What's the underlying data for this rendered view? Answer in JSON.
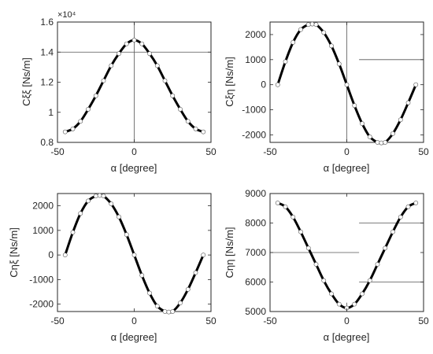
{
  "chart_data": [
    {
      "type": "line",
      "xlabel": "α [degree]",
      "ylabel": "Cξξ [Ns/m]",
      "xlim": [
        -50,
        50
      ],
      "ylim": [
        8000,
        16000
      ],
      "xticks": [
        -50,
        0,
        50
      ],
      "yticks": [
        8000,
        10000,
        12000,
        14000,
        16000
      ],
      "ytick_labels": [
        "0.8",
        "1",
        "1.2",
        "1.4",
        "1.6"
      ],
      "y_exponent_label": "×10⁴",
      "grid": false,
      "series": [
        {
          "x": [
            -45,
            -40,
            -35,
            -30,
            -25,
            -20,
            -15,
            -10,
            -5,
            0,
            5,
            10,
            15,
            20,
            25,
            30,
            35,
            40,
            45
          ],
          "y": [
            8700,
            8900,
            9400,
            10200,
            11100,
            12100,
            13100,
            13900,
            14550,
            14800,
            14550,
            13900,
            13100,
            12100,
            11100,
            10200,
            9400,
            8900,
            8700
          ]
        }
      ],
      "reference_lines": [
        {
          "orientation": "horizontal",
          "value": 14000,
          "from": -50,
          "to": 50
        },
        {
          "orientation": "vertical",
          "value": 0,
          "from": 8000,
          "to": 16000
        }
      ]
    },
    {
      "type": "line",
      "xlabel": "α [degree]",
      "ylabel": "Cξη [Ns/m]",
      "xlim": [
        -50,
        50
      ],
      "ylim": [
        -2300,
        2500
      ],
      "xticks": [
        -50,
        0,
        50
      ],
      "yticks": [
        -2000,
        -1000,
        0,
        1000,
        2000
      ],
      "ytick_labels": [
        "-2000",
        "-1000",
        "0",
        "1000",
        "2000"
      ],
      "grid": false,
      "series": [
        {
          "x": [
            -45,
            -40,
            -35,
            -30,
            -25,
            -22.5,
            -20,
            -15,
            -10,
            -5,
            0,
            5,
            10,
            15,
            20,
            22.5,
            25,
            30,
            35,
            40,
            45
          ],
          "y": [
            0,
            920,
            1690,
            2200,
            2400,
            2420,
            2400,
            2080,
            1550,
            830,
            0,
            -830,
            -1550,
            -2080,
            -2300,
            -2320,
            -2300,
            -1950,
            -1400,
            -720,
            0
          ]
        }
      ],
      "reference_lines": [
        {
          "orientation": "vertical",
          "value": 0,
          "from": -2300,
          "to": 2500
        },
        {
          "orientation": "horizontal",
          "value": 1000,
          "from": 8,
          "to": 50
        }
      ]
    },
    {
      "type": "line",
      "xlabel": "α [degree]",
      "ylabel": "Cηξ [Ns/m]",
      "xlim": [
        -50,
        50
      ],
      "ylim": [
        -2300,
        2500
      ],
      "xticks": [
        -50,
        0,
        50
      ],
      "yticks": [
        -2000,
        -1000,
        0,
        1000,
        2000
      ],
      "ytick_labels": [
        "-2000",
        "-1000",
        "0",
        "1000",
        "2000"
      ],
      "grid": false,
      "series": [
        {
          "x": [
            -45,
            -40,
            -35,
            -30,
            -25,
            -22.5,
            -20,
            -15,
            -10,
            -5,
            0,
            5,
            10,
            15,
            20,
            22.5,
            25,
            30,
            35,
            40,
            45
          ],
          "y": [
            0,
            920,
            1690,
            2200,
            2400,
            2420,
            2400,
            2080,
            1550,
            830,
            0,
            -830,
            -1550,
            -2080,
            -2300,
            -2320,
            -2300,
            -1950,
            -1400,
            -720,
            0
          ]
        }
      ],
      "reference_lines": []
    },
    {
      "type": "line",
      "xlabel": "α [degree]",
      "ylabel": "Cηη [Ns/m]",
      "xlim": [
        -50,
        50
      ],
      "ylim": [
        5000,
        9000
      ],
      "xticks": [
        -50,
        0,
        50
      ],
      "yticks": [
        5000,
        6000,
        7000,
        8000,
        9000
      ],
      "ytick_labels": [
        "5000",
        "6000",
        "7000",
        "8000",
        "9000"
      ],
      "grid": false,
      "series": [
        {
          "x": [
            -45,
            -40,
            -35,
            -30,
            -25,
            -20,
            -15,
            -10,
            -5,
            0,
            5,
            10,
            15,
            20,
            25,
            30,
            35,
            40,
            45
          ],
          "y": [
            8680,
            8550,
            8200,
            7700,
            7150,
            6600,
            6050,
            5600,
            5250,
            5120,
            5250,
            5600,
            6050,
            6600,
            7150,
            7700,
            8200,
            8550,
            8680
          ]
        }
      ],
      "reference_lines": [
        {
          "orientation": "vertical",
          "value": 0,
          "from": 5000,
          "to": 5300
        },
        {
          "orientation": "horizontal",
          "value": 7000,
          "from": -50,
          "to": 8
        },
        {
          "orientation": "horizontal",
          "value": 8000,
          "from": 8,
          "to": 50
        },
        {
          "orientation": "horizontal",
          "value": 6000,
          "from": 8,
          "to": 50
        }
      ]
    }
  ]
}
